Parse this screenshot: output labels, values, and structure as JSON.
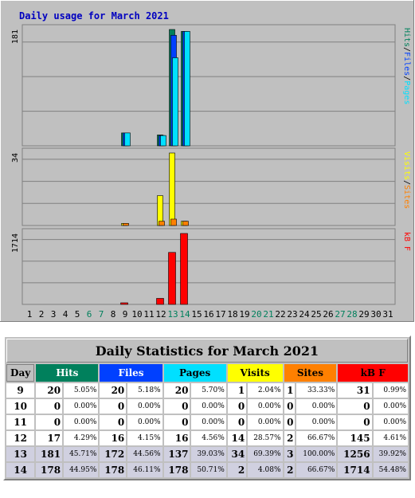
{
  "chart_data": {
    "type": "bar",
    "title": "Daily usage for March 2021",
    "days": [
      "1",
      "2",
      "3",
      "4",
      "5",
      "6",
      "7",
      "8",
      "9",
      "10",
      "11",
      "12",
      "13",
      "14",
      "15",
      "16",
      "17",
      "18",
      "19",
      "20",
      "21",
      "22",
      "23",
      "24",
      "25",
      "26",
      "27",
      "28",
      "29",
      "30",
      "31"
    ],
    "weekend_days": [
      6,
      7,
      13,
      14,
      20,
      21,
      27,
      28
    ],
    "panels": [
      {
        "max_label": "181",
        "max": 181,
        "legend": [
          "Pages",
          "/",
          "Files",
          "/",
          "Hits"
        ],
        "series": [
          {
            "name": "Hits",
            "color": "#00805c",
            "values": {
              "9": 20,
              "12": 17,
              "13": 181,
              "14": 178
            }
          },
          {
            "name": "Files",
            "color": "#0040ff",
            "values": {
              "9": 20,
              "12": 16,
              "13": 172,
              "14": 178
            }
          },
          {
            "name": "Pages",
            "color": "#00e0ff",
            "values": {
              "9": 20,
              "12": 16,
              "13": 137,
              "14": 178
            }
          }
        ]
      },
      {
        "max_label": "34",
        "max": 34,
        "legend": [
          "Sites",
          "/",
          "Visits"
        ],
        "series": [
          {
            "name": "Visits",
            "color": "#ffff00",
            "values": {
              "9": 1,
              "12": 14,
              "13": 34,
              "14": 2
            }
          },
          {
            "name": "Sites",
            "color": "#ff8000",
            "values": {
              "9": 1,
              "12": 2,
              "13": 3,
              "14": 2
            }
          }
        ]
      },
      {
        "max_label": "1714",
        "max": 1714,
        "legend": [
          "kB F"
        ],
        "series": [
          {
            "name": "kB F",
            "color": "#ff0000",
            "values": {
              "9": 31,
              "12": 145,
              "13": 1256,
              "14": 1714
            }
          }
        ]
      }
    ]
  },
  "table": {
    "title": "Daily Statistics for March 2021",
    "headers": [
      "Day",
      "Hits",
      "Files",
      "Pages",
      "Visits",
      "Sites",
      "kB F"
    ],
    "rows": [
      {
        "day": "9",
        "hits": "20",
        "hits_pct": "5.05%",
        "files": "20",
        "files_pct": "5.18%",
        "pages": "20",
        "pages_pct": "5.70%",
        "visits": "1",
        "visits_pct": "2.04%",
        "sites": "1",
        "sites_pct": "33.33%",
        "kb": "31",
        "kb_pct": "0.99%",
        "weekend": false
      },
      {
        "day": "10",
        "hits": "0",
        "hits_pct": "0.00%",
        "files": "0",
        "files_pct": "0.00%",
        "pages": "0",
        "pages_pct": "0.00%",
        "visits": "0",
        "visits_pct": "0.00%",
        "sites": "0",
        "sites_pct": "0.00%",
        "kb": "0",
        "kb_pct": "0.00%",
        "weekend": false
      },
      {
        "day": "11",
        "hits": "0",
        "hits_pct": "0.00%",
        "files": "0",
        "files_pct": "0.00%",
        "pages": "0",
        "pages_pct": "0.00%",
        "visits": "0",
        "visits_pct": "0.00%",
        "sites": "0",
        "sites_pct": "0.00%",
        "kb": "0",
        "kb_pct": "0.00%",
        "weekend": false
      },
      {
        "day": "12",
        "hits": "17",
        "hits_pct": "4.29%",
        "files": "16",
        "files_pct": "4.15%",
        "pages": "16",
        "pages_pct": "4.56%",
        "visits": "14",
        "visits_pct": "28.57%",
        "sites": "2",
        "sites_pct": "66.67%",
        "kb": "145",
        "kb_pct": "4.61%",
        "weekend": false
      },
      {
        "day": "13",
        "hits": "181",
        "hits_pct": "45.71%",
        "files": "172",
        "files_pct": "44.56%",
        "pages": "137",
        "pages_pct": "39.03%",
        "visits": "34",
        "visits_pct": "69.39%",
        "sites": "3",
        "sites_pct": "100.00%",
        "kb": "1256",
        "kb_pct": "39.92%",
        "weekend": true
      },
      {
        "day": "14",
        "hits": "178",
        "hits_pct": "44.95%",
        "files": "178",
        "files_pct": "46.11%",
        "pages": "178",
        "pages_pct": "50.71%",
        "visits": "2",
        "visits_pct": "4.08%",
        "sites": "2",
        "sites_pct": "66.67%",
        "kb": "1714",
        "kb_pct": "54.48%",
        "weekend": true
      }
    ]
  },
  "colors": {
    "hits": "#00805c",
    "files": "#0040ff",
    "pages": "#00e0ff",
    "visits": "#ffff00",
    "sites": "#ff8000",
    "kb": "#ff0000",
    "frame": "#c0c0c0",
    "title": "#0000c0",
    "weekend": "#00805c"
  }
}
